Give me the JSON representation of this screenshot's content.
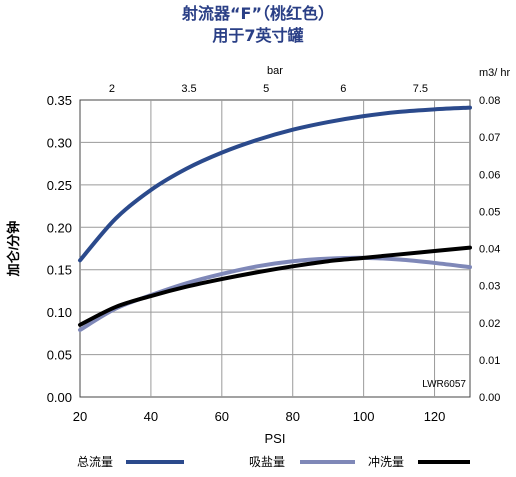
{
  "title_line1": "射流器“F”（桃红色）",
  "title_line2": "用于7英寸罐",
  "chart_data": {
    "type": "line",
    "x_bottom": {
      "label": "PSI",
      "ticks": [
        20,
        40,
        60,
        80,
        100,
        120
      ],
      "range": [
        20,
        130
      ]
    },
    "x_top": {
      "label": "bar",
      "tick_labels": [
        "2",
        "3.5",
        "5",
        "6",
        "7.5"
      ],
      "tick_positions_psi": [
        29,
        50.75,
        72.5,
        94.25,
        116
      ]
    },
    "y_left": {
      "label": "加仑/分钟",
      "ticks": [
        0.0,
        0.05,
        0.1,
        0.15,
        0.2,
        0.25,
        0.3,
        0.35
      ],
      "tick_labels": [
        "0.00",
        "0.05",
        "0.10",
        "0.15",
        "0.20",
        "0.25",
        "0.30",
        "0.35"
      ],
      "range": [
        0,
        0.35
      ]
    },
    "y_right": {
      "label": "m3/ hr",
      "tick_labels": [
        "0.00",
        "0.01",
        "0.02",
        "0.03",
        "0.04",
        "0.05",
        "0.06",
        "0.07",
        "0.08"
      ],
      "range": [
        0,
        0.08
      ]
    },
    "grid": true,
    "annotation": "LWR6057",
    "series": [
      {
        "name": "总流量",
        "color": "#2b4a8c",
        "x": [
          20,
          30,
          40,
          50,
          60,
          70,
          80,
          90,
          100,
          110,
          120,
          130
        ],
        "y": [
          0.161,
          0.21,
          0.244,
          0.269,
          0.288,
          0.303,
          0.315,
          0.324,
          0.331,
          0.336,
          0.339,
          0.341
        ]
      },
      {
        "name": "吸盐量",
        "color": "#7f88b8",
        "x": [
          20,
          30,
          40,
          50,
          60,
          70,
          80,
          90,
          100,
          110,
          120,
          130
        ],
        "y": [
          0.079,
          0.104,
          0.12,
          0.134,
          0.145,
          0.154,
          0.16,
          0.163,
          0.164,
          0.162,
          0.158,
          0.153
        ]
      },
      {
        "name": "冲洗量",
        "color": "#000000",
        "x": [
          20,
          30,
          40,
          50,
          60,
          70,
          80,
          90,
          100,
          110,
          120,
          130
        ],
        "y": [
          0.085,
          0.106,
          0.119,
          0.13,
          0.139,
          0.147,
          0.154,
          0.16,
          0.164,
          0.168,
          0.172,
          0.176
        ]
      }
    ]
  }
}
